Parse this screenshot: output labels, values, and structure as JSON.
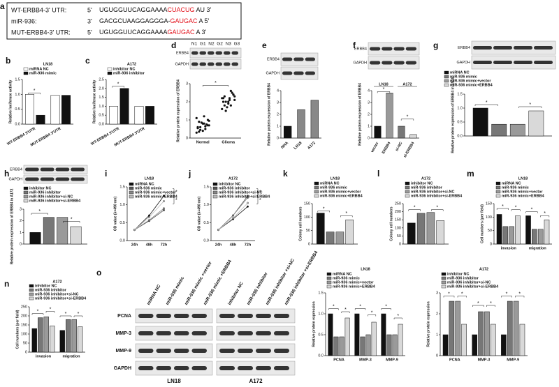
{
  "sequence_panel": {
    "label": "a",
    "rows": [
      {
        "name": "WT-ERBB4-3' UTR:",
        "end": "5'",
        "seq": "UGUGGUUCAGGAAAA",
        "site": "CUACUG",
        "tail": "AU 3'"
      },
      {
        "name": "miR-936:",
        "end": "3'",
        "seq": "GACGCUAAGGAGGGA-",
        "site": "GAUGAC",
        "tail": "A 5'"
      },
      {
        "name": "MUT-ERBB4-3' UTR:",
        "end": "5'",
        "seq": "UGUGGUUCAGGAAAA",
        "site": "GAUGAC",
        "tail": "A 3'"
      }
    ]
  },
  "blot_panel": {
    "label": "o",
    "lanes": [
      "miRNA NC",
      "miR-936 mimic",
      "miR-936 mimic +vector",
      "miR-936 mimic +ERBB4",
      "inhibitor NC",
      "miR-936 inhibitor",
      "miR-936 inhibitor +si-NC",
      "miR-936 inhibitor +si-ERBB4"
    ],
    "rows": [
      "PCNA",
      "MMP-3",
      "MMP-9",
      "GAPDH"
    ],
    "groups": [
      "LN18",
      "A172"
    ]
  },
  "chart_data": [
    {
      "type": "bar",
      "label": "b",
      "title": "LN18",
      "ylabel": "Relative luciferase activity",
      "sig": "*",
      "categories": [
        "WT-ERBB4 3'UTR",
        "MUT-ERBB4 3'UTR"
      ],
      "series": [
        {
          "name": "miRNA NC",
          "color": "#ffffff",
          "values": [
            1.0,
            0.97
          ]
        },
        {
          "name": "miR-936 mimic",
          "color": "#111111",
          "values": [
            0.3,
            0.97
          ]
        }
      ],
      "ylim": [
        0,
        1.5
      ],
      "yticks": [
        {
          "value": 0,
          "label": "0.0"
        },
        {
          "value": 0.5,
          "label": "0.5"
        },
        {
          "value": 1,
          "label": "1.0"
        },
        {
          "value": 1.5,
          "label": "1.5"
        }
      ]
    },
    {
      "type": "bar",
      "label": "c",
      "title": "A172",
      "ylabel": "Relative luciferase activity",
      "sig": "*",
      "categories": [
        "WT-ERBB4 3'UTR",
        "MUT-ERBB4 3'UTR"
      ],
      "series": [
        {
          "name": "inhibitor NC",
          "color": "#ffffff",
          "values": [
            1.0,
            1.0
          ]
        },
        {
          "name": "miR-936 inhibitor",
          "color": "#111111",
          "values": [
            2.0,
            1.0
          ]
        }
      ],
      "ylim": [
        0,
        2.5
      ],
      "yticks": [
        {
          "value": 0,
          "label": "0.0"
        },
        {
          "value": 0.5,
          "label": "0.5"
        },
        {
          "value": 1,
          "label": "1.0"
        },
        {
          "value": 1.5,
          "label": "1.5"
        },
        {
          "value": 2,
          "label": "2.0"
        },
        {
          "value": 2.5,
          "label": "2.5"
        }
      ]
    },
    {
      "type": "dot",
      "label": "d",
      "ylabel": "Relative protein expression of ERBB4",
      "sig": "*",
      "blot": {
        "rows": [
          "ERBB4",
          "GAPDH"
        ],
        "lanes": [
          "N1",
          "G1",
          "N2",
          "G2",
          "N3",
          "G3"
        ]
      },
      "categories": [
        "Normal",
        "Glioma"
      ],
      "points": [
        [
          0.3,
          0.5,
          0.6,
          0.7,
          0.8,
          0.9,
          1.0,
          0.4,
          0.55,
          0.75,
          0.85,
          1.1,
          0.65,
          0.45,
          0.95,
          1.2,
          0.35,
          0.7,
          0.8,
          0.6
        ],
        [
          1.6,
          1.8,
          2.0,
          2.1,
          2.2,
          2.3,
          2.4,
          1.9,
          2.0,
          2.5,
          1.7,
          2.2,
          2.6,
          1.5,
          2.3,
          2.1,
          1.8,
          2.4,
          2.0,
          2.2
        ]
      ],
      "color": "#111111",
      "ylim": [
        0,
        3
      ],
      "yticks": [
        0,
        1,
        2,
        3
      ]
    },
    {
      "type": "bar",
      "label": "e",
      "ylabel": "Relative protein expression of ERBB4",
      "blot": {
        "rows": [
          "ERBB4",
          "GAPDH"
        ]
      },
      "categories": [
        "NHA",
        "LN18",
        "A172"
      ],
      "series": [
        {
          "colors": [
            "#111111",
            "#888888",
            "#888888"
          ],
          "values": [
            1.0,
            2.4,
            3.2
          ]
        }
      ],
      "ylim": [
        0,
        4
      ],
      "yticks": [
        0,
        1,
        2,
        3,
        4
      ]
    },
    {
      "type": "bar",
      "label": "f",
      "ylabel": "Relative protein expression of ERBB4",
      "sig": "*",
      "blot": {
        "rows": [
          "ERBB4",
          "GAPDH"
        ]
      },
      "groups": [
        "LN18",
        "A172"
      ],
      "categories": [
        "vector",
        "ERBB4",
        "si-NC",
        "si-ERBB4"
      ],
      "series": [
        {
          "colors": [
            "#111111",
            "#999999",
            "#777777",
            "#d9d9d9"
          ],
          "values": [
            1.0,
            3.8,
            1.0,
            0.3
          ]
        }
      ],
      "ylim": [
        0,
        4
      ],
      "yticks": [
        0,
        1,
        2,
        3,
        4
      ]
    },
    {
      "type": "bar",
      "label": "g",
      "ylabel": "Relative protein expression of ERBB4 in LN18",
      "sig": "*",
      "blot": {
        "rows": [
          "ERBB4",
          "GAPDH"
        ]
      },
      "categories": [
        null
      ],
      "series": [
        {
          "name": "miRNA NC",
          "color": "#111111",
          "values": [
            1.0
          ]
        },
        {
          "name": "miR-936 mimic",
          "color": "#777777",
          "values": [
            0.42
          ]
        },
        {
          "name": "miR-936 mimic+vector",
          "color": "#9a9a9a",
          "values": [
            0.42
          ]
        },
        {
          "name": "miR-936 mimic+ERBB4",
          "color": "#d9d9d9",
          "values": [
            0.9
          ]
        }
      ],
      "ylim": [
        0,
        1.5
      ],
      "yticks": [
        {
          "value": 0,
          "label": "0.0"
        },
        {
          "value": 0.5,
          "label": "0.5"
        },
        {
          "value": 1,
          "label": "1.0"
        },
        {
          "value": 1.5,
          "label": "1.5"
        }
      ]
    },
    {
      "type": "bar",
      "label": "h",
      "ylabel": "Relative protein expression of ERBB4 in A172",
      "sig": "*",
      "blot": {
        "rows": [
          "ERBB4",
          "GAPDH"
        ]
      },
      "categories": [
        null
      ],
      "series": [
        {
          "name": "inhibitor NC",
          "color": "#111111",
          "values": [
            1.0
          ]
        },
        {
          "name": "miR-936 inhibitor",
          "color": "#777777",
          "values": [
            2.3
          ]
        },
        {
          "name": "miR-936 inhibitor+si-NC",
          "color": "#9a9a9a",
          "values": [
            2.3
          ]
        },
        {
          "name": "miR-936 inhibitor+si-ERBB4",
          "color": "#d9d9d9",
          "values": [
            1.5
          ]
        }
      ],
      "ylim": [
        0,
        3
      ],
      "yticks": [
        0,
        1,
        2,
        3
      ]
    },
    {
      "type": "line",
      "label": "i",
      "title": "LN18",
      "ylabel": "OD value (λ=490 nm)",
      "sig": "*",
      "categories": [
        "24h",
        "48h",
        "72h"
      ],
      "series": [
        {
          "name": "miRNA NC",
          "color": "#111111",
          "values": [
            0.3,
            0.7,
            1.25
          ]
        },
        {
          "name": "miR-936 mimic",
          "color": "#555555",
          "values": [
            0.3,
            0.55,
            0.85
          ]
        },
        {
          "name": "miR-936 mimic+vector",
          "color": "#888888",
          "values": [
            0.3,
            0.57,
            0.9
          ]
        },
        {
          "name": "miR-936 mimic+ERBB4",
          "color": "#bbbbbb",
          "values": [
            0.3,
            0.65,
            1.1
          ]
        }
      ],
      "ylim": [
        0,
        1.5
      ],
      "yticks": [
        {
          "value": 0,
          "label": "0.0"
        },
        {
          "value": 0.5,
          "label": "0.5"
        },
        {
          "value": 1,
          "label": "1.0"
        },
        {
          "value": 1.5,
          "label": "1.5"
        }
      ]
    },
    {
      "type": "line",
      "label": "j",
      "title": "A172",
      "ylabel": "OD value (λ=490 nm)",
      "sig": "*",
      "categories": [
        "24h",
        "48h",
        "72h"
      ],
      "series": [
        {
          "name": "inhibitor NC",
          "color": "#111111",
          "values": [
            0.3,
            0.6,
            0.95
          ]
        },
        {
          "name": "miR-936 inhibitor",
          "color": "#555555",
          "values": [
            0.3,
            0.7,
            1.25
          ]
        },
        {
          "name": "miR-936 inhibitor+si-NC",
          "color": "#888888",
          "values": [
            0.3,
            0.7,
            1.2
          ]
        },
        {
          "name": "miR-936 inhibitor+si-ERBB4",
          "color": "#bbbbbb",
          "values": [
            0.3,
            0.63,
            1.05
          ]
        }
      ],
      "ylim": [
        0,
        1.5
      ],
      "yticks": [
        {
          "value": 0,
          "label": "0.0"
        },
        {
          "value": 0.5,
          "label": "0.5"
        },
        {
          "value": 1,
          "label": "1.0"
        },
        {
          "value": 1.5,
          "label": "1.5"
        }
      ]
    },
    {
      "type": "bar",
      "label": "k",
      "title": "LN18",
      "ylabel": "Colony cell numbers",
      "sig": "*",
      "categories": [
        null
      ],
      "series": [
        {
          "name": "miRNA NC",
          "color": "#111111",
          "values": [
            115
          ]
        },
        {
          "name": "miR-936 mimic",
          "color": "#777777",
          "values": [
            45
          ]
        },
        {
          "name": "miR-936 mimic+vector",
          "color": "#9a9a9a",
          "values": [
            45
          ]
        },
        {
          "name": "miR-936 mimic+ERBB4",
          "color": "#d9d9d9",
          "values": [
            90
          ]
        }
      ],
      "ylim": [
        0,
        150
      ],
      "yticks": [
        0,
        50,
        100,
        150
      ]
    },
    {
      "type": "bar",
      "label": "l",
      "title": "A172",
      "ylabel": "Colony cell numbers",
      "sig": "*",
      "categories": [
        null
      ],
      "series": [
        {
          "name": "inhibitor NC",
          "color": "#111111",
          "values": [
            130
          ]
        },
        {
          "name": "miR-936 inhibitor",
          "color": "#777777",
          "values": [
            190
          ]
        },
        {
          "name": "miR-936 inhibitor+si-NC",
          "color": "#9a9a9a",
          "values": [
            195
          ]
        },
        {
          "name": "miR-936 inhibitor+si-ERBB4",
          "color": "#d9d9d9",
          "values": [
            145
          ]
        }
      ],
      "ylim": [
        0,
        250
      ],
      "yticks": [
        0,
        50,
        100,
        150,
        200,
        250
      ]
    },
    {
      "type": "bar",
      "label": "m",
      "title": "LN18",
      "ylabel": "Cell numbers (per field)",
      "sig": "*",
      "categories": [
        "invasion",
        "migration"
      ],
      "series": [
        {
          "name": "miRNA NC",
          "color": "#111111",
          "values": [
            110,
            105
          ]
        },
        {
          "name": "miR-936 mimic",
          "color": "#777777",
          "values": [
            65,
            55
          ]
        },
        {
          "name": "miR-936 mimic+vector",
          "color": "#9a9a9a",
          "values": [
            65,
            55
          ]
        },
        {
          "name": "miR-936 mimic+ERBB4",
          "color": "#d9d9d9",
          "values": [
            105,
            90
          ]
        }
      ],
      "ylim": [
        0,
        150
      ],
      "yticks": [
        0,
        50,
        100,
        150
      ]
    },
    {
      "type": "bar",
      "label": "n",
      "title": "A172",
      "ylabel": "Cell numbers (per field)",
      "sig": "*",
      "categories": [
        "invasion",
        "migration"
      ],
      "series": [
        {
          "name": "inhibitor NC",
          "color": "#111111",
          "values": [
            130,
            120
          ]
        },
        {
          "name": "miR-936 inhibitor",
          "color": "#777777",
          "values": [
            190,
            180
          ]
        },
        {
          "name": "miR-936 inhibitor+si-NC",
          "color": "#9a9a9a",
          "values": [
            195,
            180
          ]
        },
        {
          "name": "miR-936 inhibitor+si-ERBB4",
          "color": "#d9d9d9",
          "values": [
            145,
            140
          ]
        }
      ],
      "ylim": [
        0,
        250
      ],
      "yticks": [
        0,
        50,
        100,
        150,
        200,
        250
      ]
    },
    {
      "type": "bar",
      "title": "LN18",
      "ylabel": "Relative protein expression",
      "sig": "*",
      "categories": [
        "PCNA",
        "MMP-3",
        "MMP-9"
      ],
      "series": [
        {
          "name": "miRNA NC",
          "color": "#111111",
          "values": [
            1.0,
            1.0,
            1.0
          ]
        },
        {
          "name": "miR-936 mimic",
          "color": "#777777",
          "values": [
            0.45,
            0.45,
            0.5
          ]
        },
        {
          "name": "miR-936 mimic+vector",
          "color": "#9a9a9a",
          "values": [
            0.45,
            0.5,
            0.5
          ]
        },
        {
          "name": "miR-936 mimic+ERBB4",
          "color": "#d9d9d9",
          "values": [
            0.9,
            0.8,
            0.75
          ]
        }
      ],
      "ylim": [
        0,
        1.5
      ],
      "yticks": [
        {
          "value": 0,
          "label": "0.0"
        },
        {
          "value": 0.5,
          "label": "0.5"
        },
        {
          "value": 1,
          "label": "1.0"
        },
        {
          "value": 1.5,
          "label": "1.5"
        }
      ]
    },
    {
      "type": "bar",
      "title": "A172",
      "ylabel": "Relative protein expression",
      "sig": "*",
      "categories": [
        "PCNA",
        "MMP-3",
        "MMP-9"
      ],
      "series": [
        {
          "name": "inhibitor NC",
          "color": "#111111",
          "values": [
            1.0,
            1.0,
            1.0
          ]
        },
        {
          "name": "miR-936 inhibitor",
          "color": "#777777",
          "values": [
            2.6,
            2.1,
            2.6
          ]
        },
        {
          "name": "miR-936 inhibitor+si-NC",
          "color": "#9a9a9a",
          "values": [
            2.6,
            2.1,
            2.6
          ]
        },
        {
          "name": "miR-936 inhibitor+si-ERBB4",
          "color": "#d9d9d9",
          "values": [
            1.5,
            1.5,
            1.5
          ]
        }
      ],
      "ylim": [
        0,
        3
      ],
      "yticks": [
        0,
        1,
        2,
        3
      ]
    }
  ]
}
